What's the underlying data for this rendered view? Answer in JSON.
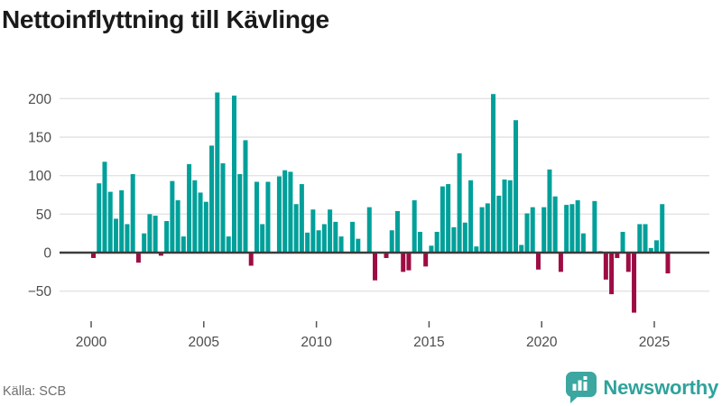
{
  "title": "Nettoinflyttning till Kävlinge",
  "source": {
    "label": "Källa: SCB"
  },
  "branding": {
    "name": "Newsworthy",
    "badge_color": "#3ca6a0",
    "text_color": "#2fa29b"
  },
  "colors": {
    "positive": "#00a09a",
    "negative": "#9e0c43",
    "grid": "#e3e3e3",
    "zero_line": "#3c3c3c",
    "axis_text": "#4d4d4d",
    "tick_mark": "#555555",
    "title_text": "#1a1a1a",
    "source_text": "#6e6e6e"
  },
  "chart_data": {
    "type": "bar",
    "title": "Nettoinflyttning till Kävlinge",
    "frequency": "quarterly",
    "x_start": "2000-Q1",
    "x_end": "2025-Q3",
    "x_tick_labels": [
      "2000",
      "2005",
      "2010",
      "2015",
      "2020",
      "2025"
    ],
    "y_ticks": [
      200,
      150,
      100,
      50,
      0,
      -50
    ],
    "y_tick_labels": [
      "200",
      "150",
      "100",
      "50",
      "0",
      "−50"
    ],
    "ylim": [
      -90,
      225
    ],
    "grid": true,
    "legend": false,
    "positive_color": "#00a09a",
    "negative_color": "#9e0c43",
    "series": [
      {
        "name": "Nettoinflyttning",
        "years": [
          {
            "year": 2000,
            "values": [
              -7,
              90,
              118,
              79
            ]
          },
          {
            "year": 2001,
            "values": [
              44,
              81,
              37,
              102
            ]
          },
          {
            "year": 2002,
            "values": [
              -13,
              25,
              50,
              48
            ]
          },
          {
            "year": 2003,
            "values": [
              -4,
              41,
              93,
              68
            ]
          },
          {
            "year": 2004,
            "values": [
              21,
              115,
              94,
              78
            ]
          },
          {
            "year": 2005,
            "values": [
              66,
              139,
              208,
              116
            ]
          },
          {
            "year": 2006,
            "values": [
              21,
              204,
              102,
              146
            ]
          },
          {
            "year": 2007,
            "values": [
              -17,
              92,
              37,
              92
            ]
          },
          {
            "year": 2008,
            "values": [
              0,
              99,
              107,
              105
            ]
          },
          {
            "year": 2009,
            "values": [
              63,
              89,
              26,
              56
            ]
          },
          {
            "year": 2010,
            "values": [
              29,
              37,
              56,
              40
            ]
          },
          {
            "year": 2011,
            "values": [
              21,
              0,
              40,
              18
            ]
          },
          {
            "year": 2012,
            "values": [
              0,
              59,
              -36,
              0
            ]
          },
          {
            "year": 2013,
            "values": [
              -7,
              29,
              54,
              -25
            ]
          },
          {
            "year": 2014,
            "values": [
              -23,
              68,
              27,
              -18
            ]
          },
          {
            "year": 2015,
            "values": [
              9,
              27,
              86,
              89
            ]
          },
          {
            "year": 2016,
            "values": [
              33,
              129,
              39,
              94
            ]
          },
          {
            "year": 2017,
            "values": [
              8,
              59,
              64,
              206
            ]
          },
          {
            "year": 2018,
            "values": [
              74,
              95,
              94,
              172
            ]
          },
          {
            "year": 2019,
            "values": [
              10,
              51,
              59,
              -22
            ]
          },
          {
            "year": 2020,
            "values": [
              59,
              108,
              73,
              -25
            ]
          },
          {
            "year": 2021,
            "values": [
              62,
              63,
              68,
              25
            ]
          },
          {
            "year": 2022,
            "values": [
              0,
              67,
              2,
              -35
            ]
          },
          {
            "year": 2023,
            "values": [
              -54,
              -7,
              27,
              -25
            ]
          },
          {
            "year": 2024,
            "values": [
              -78,
              37,
              37,
              6
            ]
          },
          {
            "year": 2025,
            "values": [
              16,
              63,
              -27
            ]
          }
        ]
      }
    ]
  }
}
